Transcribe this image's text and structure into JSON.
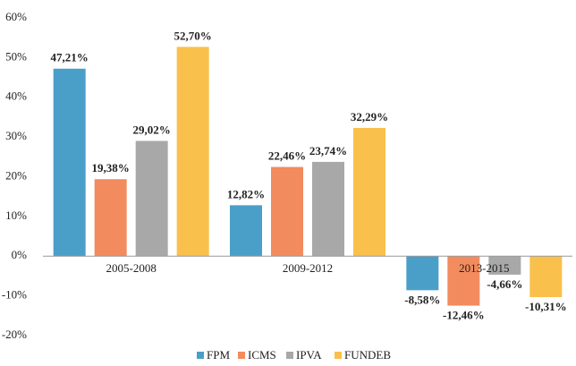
{
  "chart_data": {
    "type": "bar",
    "categories": [
      "2005-2008",
      "2009-2012",
      "2013-2015"
    ],
    "series": [
      {
        "name": "FPM",
        "color": "#4a9fc8",
        "values": [
          47.21,
          12.82,
          -8.58
        ],
        "value_labels": [
          "47,21%",
          "12,82%",
          "-8,58%"
        ]
      },
      {
        "name": "ICMS",
        "color": "#f28b5e",
        "values": [
          19.38,
          22.46,
          -12.46
        ],
        "value_labels": [
          "19,38%",
          "22,46%",
          "-12,46%"
        ]
      },
      {
        "name": "IPVA",
        "color": "#a8a8a8",
        "values": [
          29.02,
          23.74,
          -4.66
        ],
        "value_labels": [
          "29,02%",
          "23,74%",
          "-4,66%"
        ]
      },
      {
        "name": "FUNDEB",
        "color": "#f9c04c",
        "values": [
          52.7,
          32.29,
          -10.31
        ],
        "value_labels": [
          "52,70%",
          "32,29%",
          "-10,31%"
        ]
      }
    ],
    "ylim": [
      -20,
      60
    ],
    "yticks": [
      {
        "value": -20,
        "label": "-20%"
      },
      {
        "value": -10,
        "label": "-10%"
      },
      {
        "value": 0,
        "label": "0%"
      },
      {
        "value": 10,
        "label": "10%"
      },
      {
        "value": 20,
        "label": "20%"
      },
      {
        "value": 30,
        "label": "30%"
      },
      {
        "value": 40,
        "label": "40%"
      },
      {
        "value": 50,
        "label": "50%"
      },
      {
        "value": 60,
        "label": "60%"
      }
    ],
    "grid": false
  }
}
